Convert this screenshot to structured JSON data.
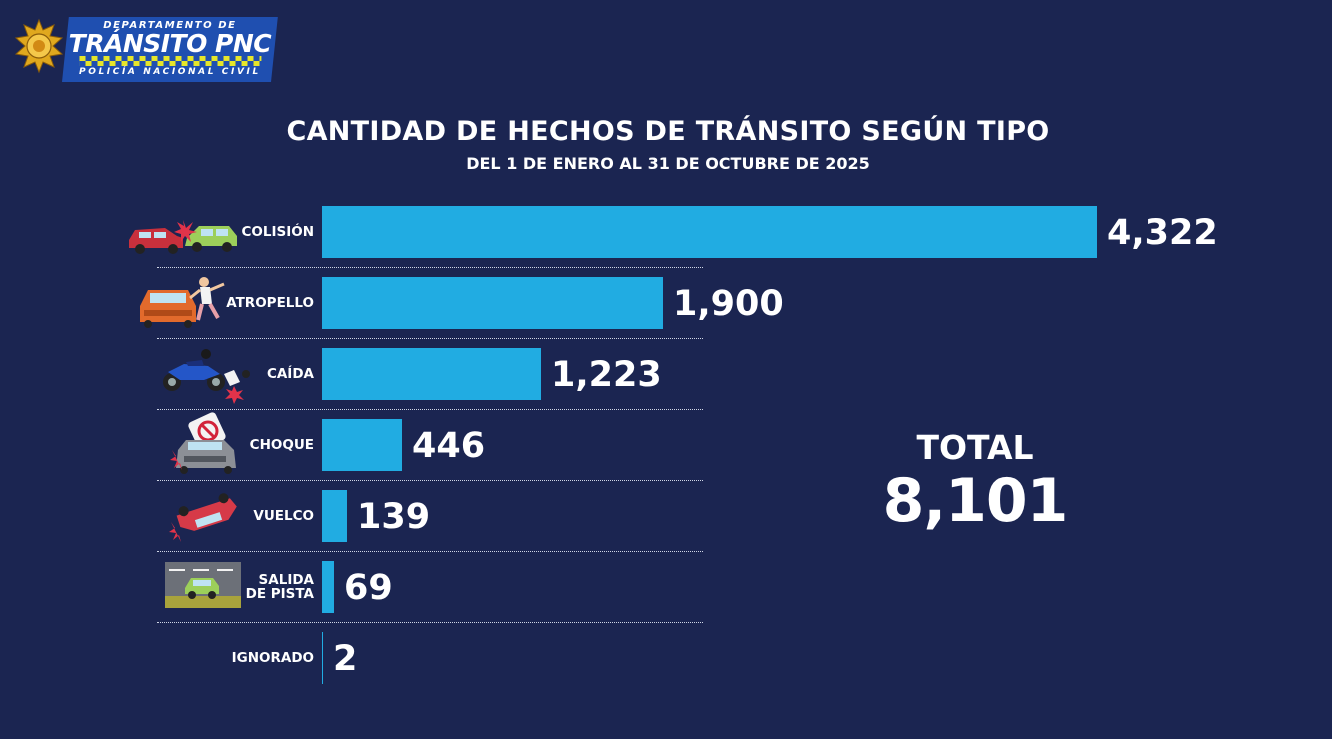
{
  "header": {
    "logo_line1": "DEPARTAMENTO DE",
    "logo_line2": "TRÁNSITO PNC",
    "logo_line3": "POLICÍA NACIONAL CIVIL"
  },
  "chart_data": {
    "type": "bar",
    "orientation": "horizontal",
    "title": "CANTIDAD DE HECHOS DE TRÁNSITO SEGÚN TIPO",
    "subtitle": "DEL 1 DE ENERO AL 31 DE OCTUBRE DE 2025",
    "categories": [
      "COLISIÓN",
      "ATROPELLO",
      "CAÍDA",
      "CHOQUE",
      "VUELCO",
      "SALIDA DE PISTA",
      "IGNORADO"
    ],
    "category_lines": [
      [
        "COLISIÓN"
      ],
      [
        "ATROPELLO"
      ],
      [
        "CAÍDA"
      ],
      [
        "CHOQUE"
      ],
      [
        "VUELCO"
      ],
      [
        "SALIDA",
        "DE PISTA"
      ],
      [
        "IGNORADO"
      ]
    ],
    "values": [
      4322,
      1900,
      1223,
      446,
      139,
      69,
      2
    ],
    "value_labels": [
      "4,322",
      "1,900",
      "1,223",
      "446",
      "139",
      "69",
      "2"
    ],
    "xlim": [
      0,
      4322
    ],
    "bar_color": "#21ace2",
    "total_label": "TOTAL",
    "total_value": "8,101"
  },
  "colors": {
    "background": "#1b2551",
    "badge": "#1f4fb0",
    "checker": "#e6e62a"
  },
  "icons": [
    "police-star-icon",
    "car-collision-icon",
    "pedestrian-hit-icon",
    "motorcycle-fall-icon",
    "car-crash-sign-icon",
    "rollover-car-icon",
    "road-exit-icon"
  ]
}
